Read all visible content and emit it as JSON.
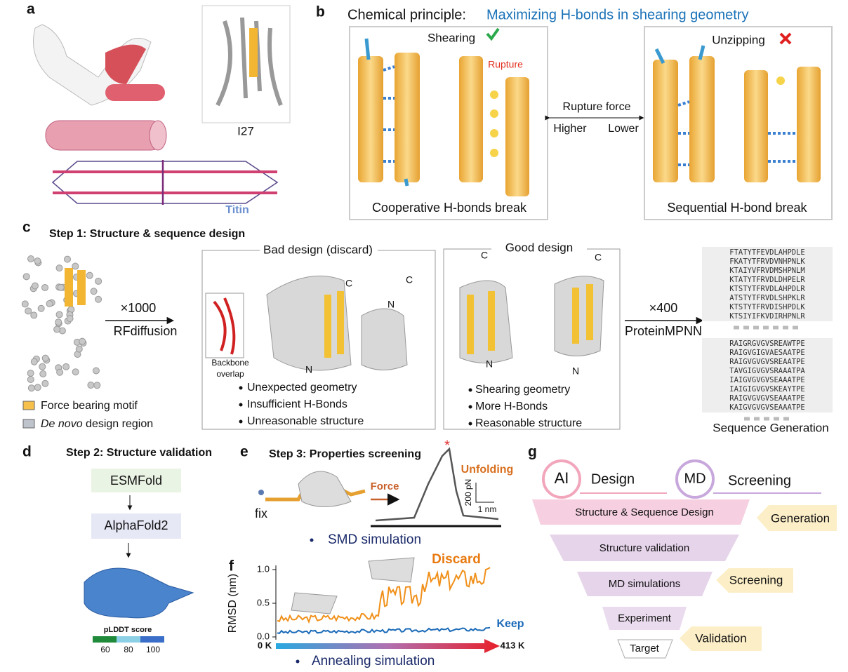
{
  "panels": {
    "a": {
      "label": "a",
      "i27": "I27",
      "titin": "Titin"
    },
    "b": {
      "label": "b",
      "title": "Chemical principle: ",
      "title_highlight": "Maximizing H-bonds in shearing geometry",
      "shearing": "Shearing",
      "rupture": "Rupture",
      "cooperative": "Cooperative H-bonds break",
      "rupture_force": "Rupture force",
      "higher": "Higher",
      "lower": "Lower",
      "unzipping": "Unzipping",
      "sequential": "Sequential H-bond break"
    },
    "c": {
      "label": "c",
      "title": "Step 1: Structure & sequence design",
      "x1000": "×1000",
      "rfdiffusion": "RFdiffusion",
      "legend": [
        {
          "text": "Force bearing motif"
        },
        {
          "italic": "De novo",
          "text": " design region"
        }
      ],
      "bad": {
        "title": "Bad design (discard)",
        "backbone": [
          "Backbone",
          "overlap"
        ],
        "termini": [
          "C",
          "N",
          "C",
          "N"
        ],
        "bullets": [
          "Unexpected geometry",
          "Insufficient H-Bonds",
          "Unreasonable structure"
        ]
      },
      "good": {
        "title": "Good design",
        "termini": [
          "C",
          "N",
          "C",
          "N"
        ],
        "bullets": [
          "Shearing geometry",
          "More H-Bonds",
          "Reasonable structure"
        ]
      },
      "x400": "×400",
      "mpnn": "ProteinMPNN",
      "sequences_top": [
        "FTATYTFEVDLAHPDLE",
        "FKATYTFRVDVNHPNLK",
        "KTAIYVFRVDMSHPNLM",
        "KTATYTFRVDLDHPELR",
        "KTSTYTFRVDLAHPDLR",
        "ATSTYTFRVDLSHPKLR",
        "KTSTYTFRVDISHPDLK",
        "KTSIYIFKVDIRHPNLR"
      ],
      "sequences_bottom": [
        "RAIGRGVGVSREAWTPE",
        "RAIGVGIGVAESAATPE",
        "RAIGVGVGVSREAATPE",
        "TAVGIGVGVSRAAATPA",
        "IAIGVGVGVSEAAATPE",
        "IAIGIGVGVSKEAYTPE",
        "RAIGVGVGVSEAAATPE",
        "KAIGVGVGVSEAAATPE"
      ],
      "seq_gen": "Sequence Generation"
    },
    "d": {
      "label": "d",
      "title": "Step 2: Structure validation",
      "esmfold": "ESMFold",
      "alphafold": "AlphaFold2",
      "plddt": "pLDDT score",
      "scale": [
        "60",
        "80",
        "100"
      ]
    },
    "e": {
      "label": "e",
      "title": "Step 3: Properties screening",
      "fix": "fix",
      "force": "Force",
      "star": "*",
      "unfolding": "Unfolding",
      "scale_y": "200 pN",
      "scale_x": "1 nm",
      "smd": "SMD simulation"
    },
    "f": {
      "label": "f",
      "ylabel": "RMSD (nm)",
      "ylim": [
        0,
        1
      ],
      "yticks": [
        {
          "value": 0,
          "label": "0.0"
        },
        {
          "value": 0.5,
          "label": "0.5"
        },
        {
          "value": 1,
          "label": "1.0"
        }
      ],
      "discard": "Discard",
      "keep": "Keep",
      "start": "0 K",
      "end": "413 K",
      "annealing": "Annealing simulation"
    },
    "g": {
      "label": "g",
      "ai": "AI",
      "design": "Design",
      "md": "MD",
      "screening": "Screening",
      "funnel": [
        "Structure & Sequence Design",
        "Structure validation",
        "MD simulations",
        "Experiment",
        "Target"
      ],
      "tags": [
        "Generation",
        "Screening",
        "Validation"
      ]
    }
  }
}
